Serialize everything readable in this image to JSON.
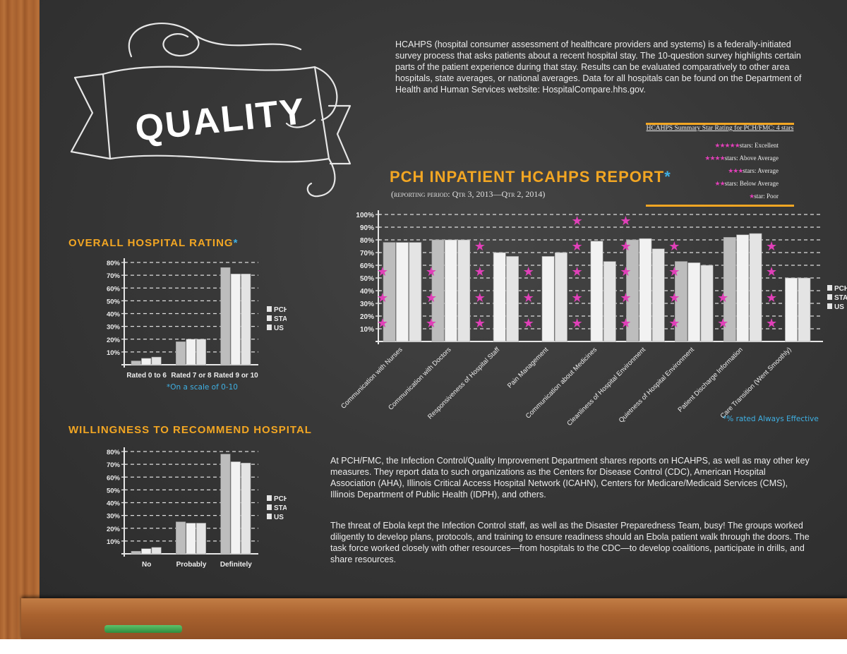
{
  "intro_text": "HCAHPS (hospital consumer assessment of healthcare providers and systems) is a federally-initiated survey process that asks patients about a recent hospital stay. The 10-question survey highlights certain parts of the patient experience during that stay. Results can be evaluated comparatively to other area hospitals, state averages, or national averages. Data for all hospitals can be found on the Department of Health and Human Services website: HospitalCompare.hhs.gov.",
  "banner_text": "QUALITY",
  "paragraph_1": "At PCH/FMC, the Infection Control/Quality Improvement Department shares reports on HCAHPS, as well as may other key measures. They report data to such organizations as the Centers for Disease Control (CDC), American Hospital Association (AHA), Illinois Critical Access Hospital Network (ICAHN), Centers for Medicare/Medicaid Services (CMS), Illinois Department of Public Health (IDPH), and others.",
  "paragraph_2": "The threat of Ebola kept the Infection Control staff, as well as the Disaster Preparedness Team, busy! The groups worked diligently to develop plans, protocols, and training to ensure readiness should an Ebola patient walk through the doors. The task force worked closely with other resources—from hospitals to the CDC—to develop coalitions, participate in drills, and share resources.",
  "star_legend": {
    "title": "HCAHPS Summary Star Rating for PCH/FMC: 4 stars",
    "rows": [
      {
        "stars": "★★★★★",
        "label": "stars: Excellent"
      },
      {
        "stars": "★★★★",
        "label": "stars: Above Average"
      },
      {
        "stars": "★★★",
        "label": "stars: Average"
      },
      {
        "stars": "★★",
        "label": "stars: Below Average"
      },
      {
        "stars": "★",
        "label": "star: Poor"
      }
    ]
  },
  "main_title": "PCH INPATIENT HCAHPS REPORT",
  "main_title_mark": "*",
  "main_subtitle": "(reporting period: Qtr 3, 2013—Qtr 2, 2014)",
  "left1_title": "OVERALL HOSPITAL RATING",
  "left1_mark": "*",
  "left2_title": "WILLINGNESS TO RECOMMEND HOSPITAL",
  "scale_note": "*On a scale of 0-10",
  "effective_note": "*% rated Always Effective",
  "colors": {
    "orange": "#f2a623",
    "blue": "#3fb0e3",
    "magenta": "#e040b8",
    "bar": "#e8e8e8"
  },
  "chart_data": [
    {
      "id": "hcahps",
      "type": "bar",
      "categories": [
        "Communication with Nurses",
        "Communication with Doctors",
        "Responsiveness of Hospital Staff",
        "Pain Management",
        "Communication about Medicines",
        "Cleanliness of Hospital Environment",
        "Quietness of Hospital Environment",
        "Patient Discharge Information",
        "Care Transition (Went Smoothly)"
      ],
      "series": [
        {
          "name": "PCH",
          "values": [
            78,
            80,
            0,
            0,
            0,
            80,
            63,
            82,
            0
          ]
        },
        {
          "name": "STATE",
          "values": [
            78,
            80,
            70,
            67,
            79,
            81,
            62,
            84,
            50
          ]
        },
        {
          "name": "US",
          "values": [
            78,
            80,
            67,
            70,
            63,
            73,
            60,
            85,
            50
          ]
        }
      ],
      "star_ratings": [
        3,
        3,
        4,
        3,
        5,
        5,
        4,
        2,
        4
      ],
      "ylim": [
        0,
        100
      ],
      "yticks": [
        "10%",
        "20%",
        "30%",
        "40%",
        "50%",
        "60%",
        "70%",
        "80%",
        "90%",
        "100%"
      ],
      "legend": [
        "PCH",
        "STATE",
        "US"
      ],
      "grid": true
    },
    {
      "id": "overall",
      "type": "bar",
      "categories": [
        "Rated 0 to 6",
        "Rated 7 or 8",
        "Rated 9 or 10"
      ],
      "series": [
        {
          "name": "PCH",
          "values": [
            3,
            18,
            76
          ]
        },
        {
          "name": "STATE",
          "values": [
            5,
            20,
            71
          ]
        },
        {
          "name": "US",
          "values": [
            6,
            20,
            71
          ]
        }
      ],
      "ylim": [
        0,
        80
      ],
      "yticks": [
        "10%",
        "20%",
        "30%",
        "40%",
        "50%",
        "60%",
        "70%",
        "80%"
      ],
      "legend": [
        "PCH",
        "STATE",
        "US"
      ],
      "grid": true
    },
    {
      "id": "recommend",
      "type": "bar",
      "categories": [
        "No",
        "Probably",
        "Definitely"
      ],
      "series": [
        {
          "name": "PCH",
          "values": [
            2,
            25,
            78
          ]
        },
        {
          "name": "STATE",
          "values": [
            4,
            24,
            72
          ]
        },
        {
          "name": "US",
          "values": [
            5,
            24,
            71
          ]
        }
      ],
      "ylim": [
        0,
        80
      ],
      "yticks": [
        "10%",
        "20%",
        "30%",
        "40%",
        "50%",
        "60%",
        "70%",
        "80%"
      ],
      "legend": [
        "PCH",
        "STATE",
        "US"
      ],
      "grid": true
    }
  ]
}
